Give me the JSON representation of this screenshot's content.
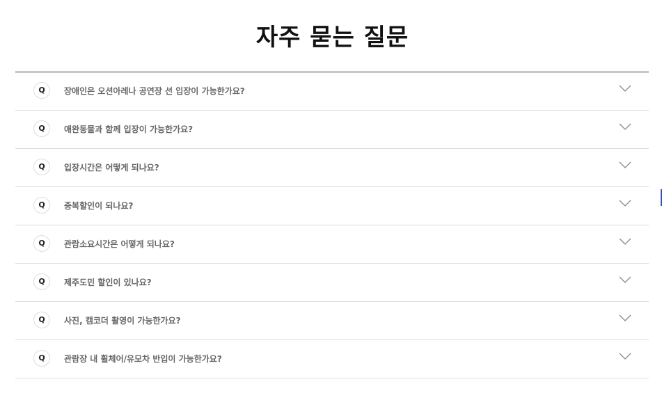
{
  "page": {
    "title": "자주 묻는 질문"
  },
  "faq": {
    "badge_label": "Q",
    "items": [
      {
        "question": "장애인은 오션아레나 공연장 선 입장이 가능한가요?",
        "icon": "chevron-down-icon"
      },
      {
        "question": "애완동물과 함께 입장이 가능한가요?",
        "icon": "chevron-down-icon"
      },
      {
        "question": "입장시간은 어떻게 되나요?",
        "icon": "chevron-down-icon"
      },
      {
        "question": "중복할인이 되나요?",
        "icon": "chevron-down-icon"
      },
      {
        "question": "관람소요시간은 어떻게 되나요?",
        "icon": "chevron-down-icon"
      },
      {
        "question": "제주도민 할인이 있나요?",
        "icon": "chevron-down-icon"
      },
      {
        "question": "사진, 캠코더 촬영이 가능한가요?",
        "icon": "chevron-down-icon"
      },
      {
        "question": "관람장 내 휠체어/유모차 반입이 가능한가요?",
        "icon": "chevron-down-icon"
      }
    ]
  },
  "colors": {
    "title": "#111111",
    "question_text": "#666666",
    "divider": "#dddddd",
    "top_rule": "#333333",
    "chevron": "#888888"
  }
}
